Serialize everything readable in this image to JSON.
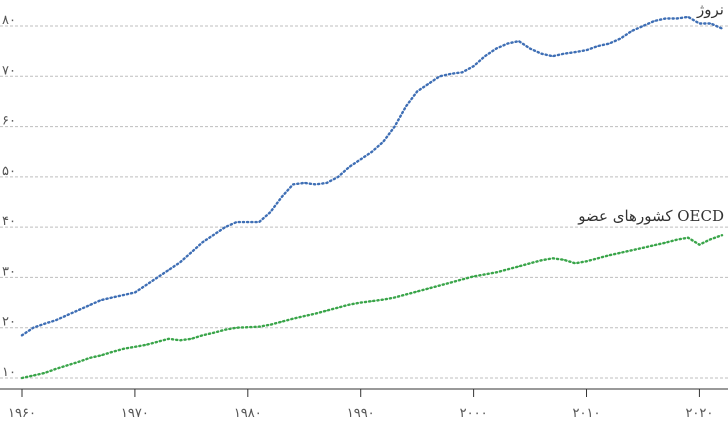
{
  "chart_data": {
    "type": "line",
    "x_ticks": [
      1960,
      1970,
      1980,
      1990,
      2000,
      2010,
      2020
    ],
    "x_tick_labels": [
      "۱۹۶۰",
      "۱۹۷۰",
      "۱۹۸۰",
      "۱۹۹۰",
      "۲۰۰۰",
      "۲۰۱۰",
      "۲۰۲۰"
    ],
    "y_ticks": [
      10,
      20,
      30,
      40,
      50,
      60,
      70,
      80
    ],
    "y_tick_labels": [
      "۱۰",
      "۲۰",
      "۳۰",
      "۴۰",
      "۵۰",
      "۶۰",
      "۷۰",
      "۸۰"
    ],
    "xlim": [
      1960,
      2022
    ],
    "ylim": [
      10,
      80
    ],
    "grid": true,
    "series": [
      {
        "name": "نروژ",
        "color": "#3f6fb5",
        "x": [
          1960,
          1961,
          1962,
          1963,
          1964,
          1965,
          1966,
          1967,
          1968,
          1969,
          1970,
          1971,
          1972,
          1973,
          1974,
          1975,
          1976,
          1977,
          1978,
          1979,
          1980,
          1981,
          1982,
          1983,
          1984,
          1985,
          1986,
          1987,
          1988,
          1989,
          1990,
          1991,
          1992,
          1993,
          1994,
          1995,
          1996,
          1997,
          1998,
          1999,
          2000,
          2001,
          2002,
          2003,
          2004,
          2005,
          2006,
          2007,
          2008,
          2009,
          2010,
          2011,
          2012,
          2013,
          2014,
          2015,
          2016,
          2017,
          2018,
          2019,
          2020,
          2021,
          2022
        ],
        "y": [
          18.5,
          20,
          20.8,
          21.5,
          22.5,
          23.5,
          24.5,
          25.5,
          26,
          26.5,
          27,
          28.5,
          30,
          31.5,
          33,
          35,
          37,
          38.5,
          40,
          41,
          41,
          41,
          43,
          46,
          48.5,
          48.8,
          48.5,
          48.8,
          50,
          52,
          53.5,
          55,
          57,
          60,
          64,
          67,
          68.5,
          70,
          70.5,
          70.8,
          72,
          74,
          75.5,
          76.5,
          77,
          75.5,
          74.5,
          74,
          74.5,
          74.8,
          75.2,
          76,
          76.5,
          77.5,
          79,
          80,
          81,
          81.5,
          81.5,
          81.8,
          80.5,
          80.5,
          79.5
        ]
      },
      {
        "name": "کشورهای عضو OECD",
        "color": "#3aa54a",
        "x": [
          1960,
          1961,
          1962,
          1963,
          1964,
          1965,
          1966,
          1967,
          1968,
          1969,
          1970,
          1971,
          1972,
          1973,
          1974,
          1975,
          1976,
          1977,
          1978,
          1979,
          1980,
          1981,
          1982,
          1983,
          1984,
          1985,
          1986,
          1987,
          1988,
          1989,
          1990,
          1991,
          1992,
          1993,
          1994,
          1995,
          1996,
          1997,
          1998,
          1999,
          2000,
          2001,
          2002,
          2003,
          2004,
          2005,
          2006,
          2007,
          2008,
          2009,
          2010,
          2011,
          2012,
          2013,
          2014,
          2015,
          2016,
          2017,
          2018,
          2019,
          2020,
          2021,
          2022
        ],
        "y": [
          10,
          10.5,
          11,
          11.8,
          12.5,
          13.2,
          14,
          14.5,
          15.2,
          15.8,
          16.2,
          16.6,
          17.2,
          17.8,
          17.5,
          17.8,
          18.5,
          19,
          19.6,
          20,
          20.1,
          20.2,
          20.6,
          21.2,
          21.8,
          22.3,
          22.8,
          23.4,
          24,
          24.6,
          25,
          25.3,
          25.6,
          26,
          26.6,
          27.2,
          27.8,
          28.4,
          29,
          29.6,
          30.2,
          30.6,
          31,
          31.6,
          32.2,
          32.8,
          33.4,
          33.8,
          33.5,
          32.8,
          33.2,
          33.8,
          34.4,
          34.9,
          35.4,
          35.9,
          36.4,
          36.9,
          37.5,
          37.9,
          36.5,
          37.6,
          38.4
        ]
      }
    ]
  }
}
